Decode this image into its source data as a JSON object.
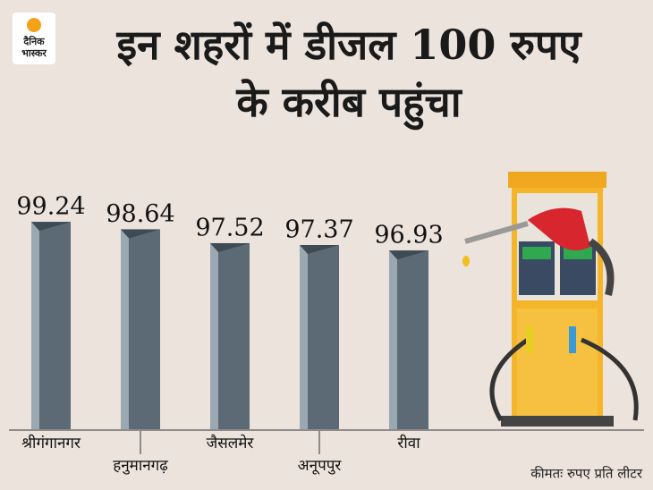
{
  "brand": "दैनिक भास्कर",
  "chart_data": {
    "type": "bar",
    "title": "इन शहरों में डीजल 100 रुपए के करीब पहुंचा",
    "categories": [
      "श्रीगंगानगर",
      "हनुमानगढ़",
      "जैसलमेर",
      "अनूपपुर",
      "रीवा"
    ],
    "values": [
      99.24,
      98.64,
      97.52,
      97.37,
      96.93
    ],
    "color": "#5b6a74",
    "ylim": [
      82.5,
      100
    ],
    "note": "कीमतः रुपए प्रति लीटर"
  }
}
